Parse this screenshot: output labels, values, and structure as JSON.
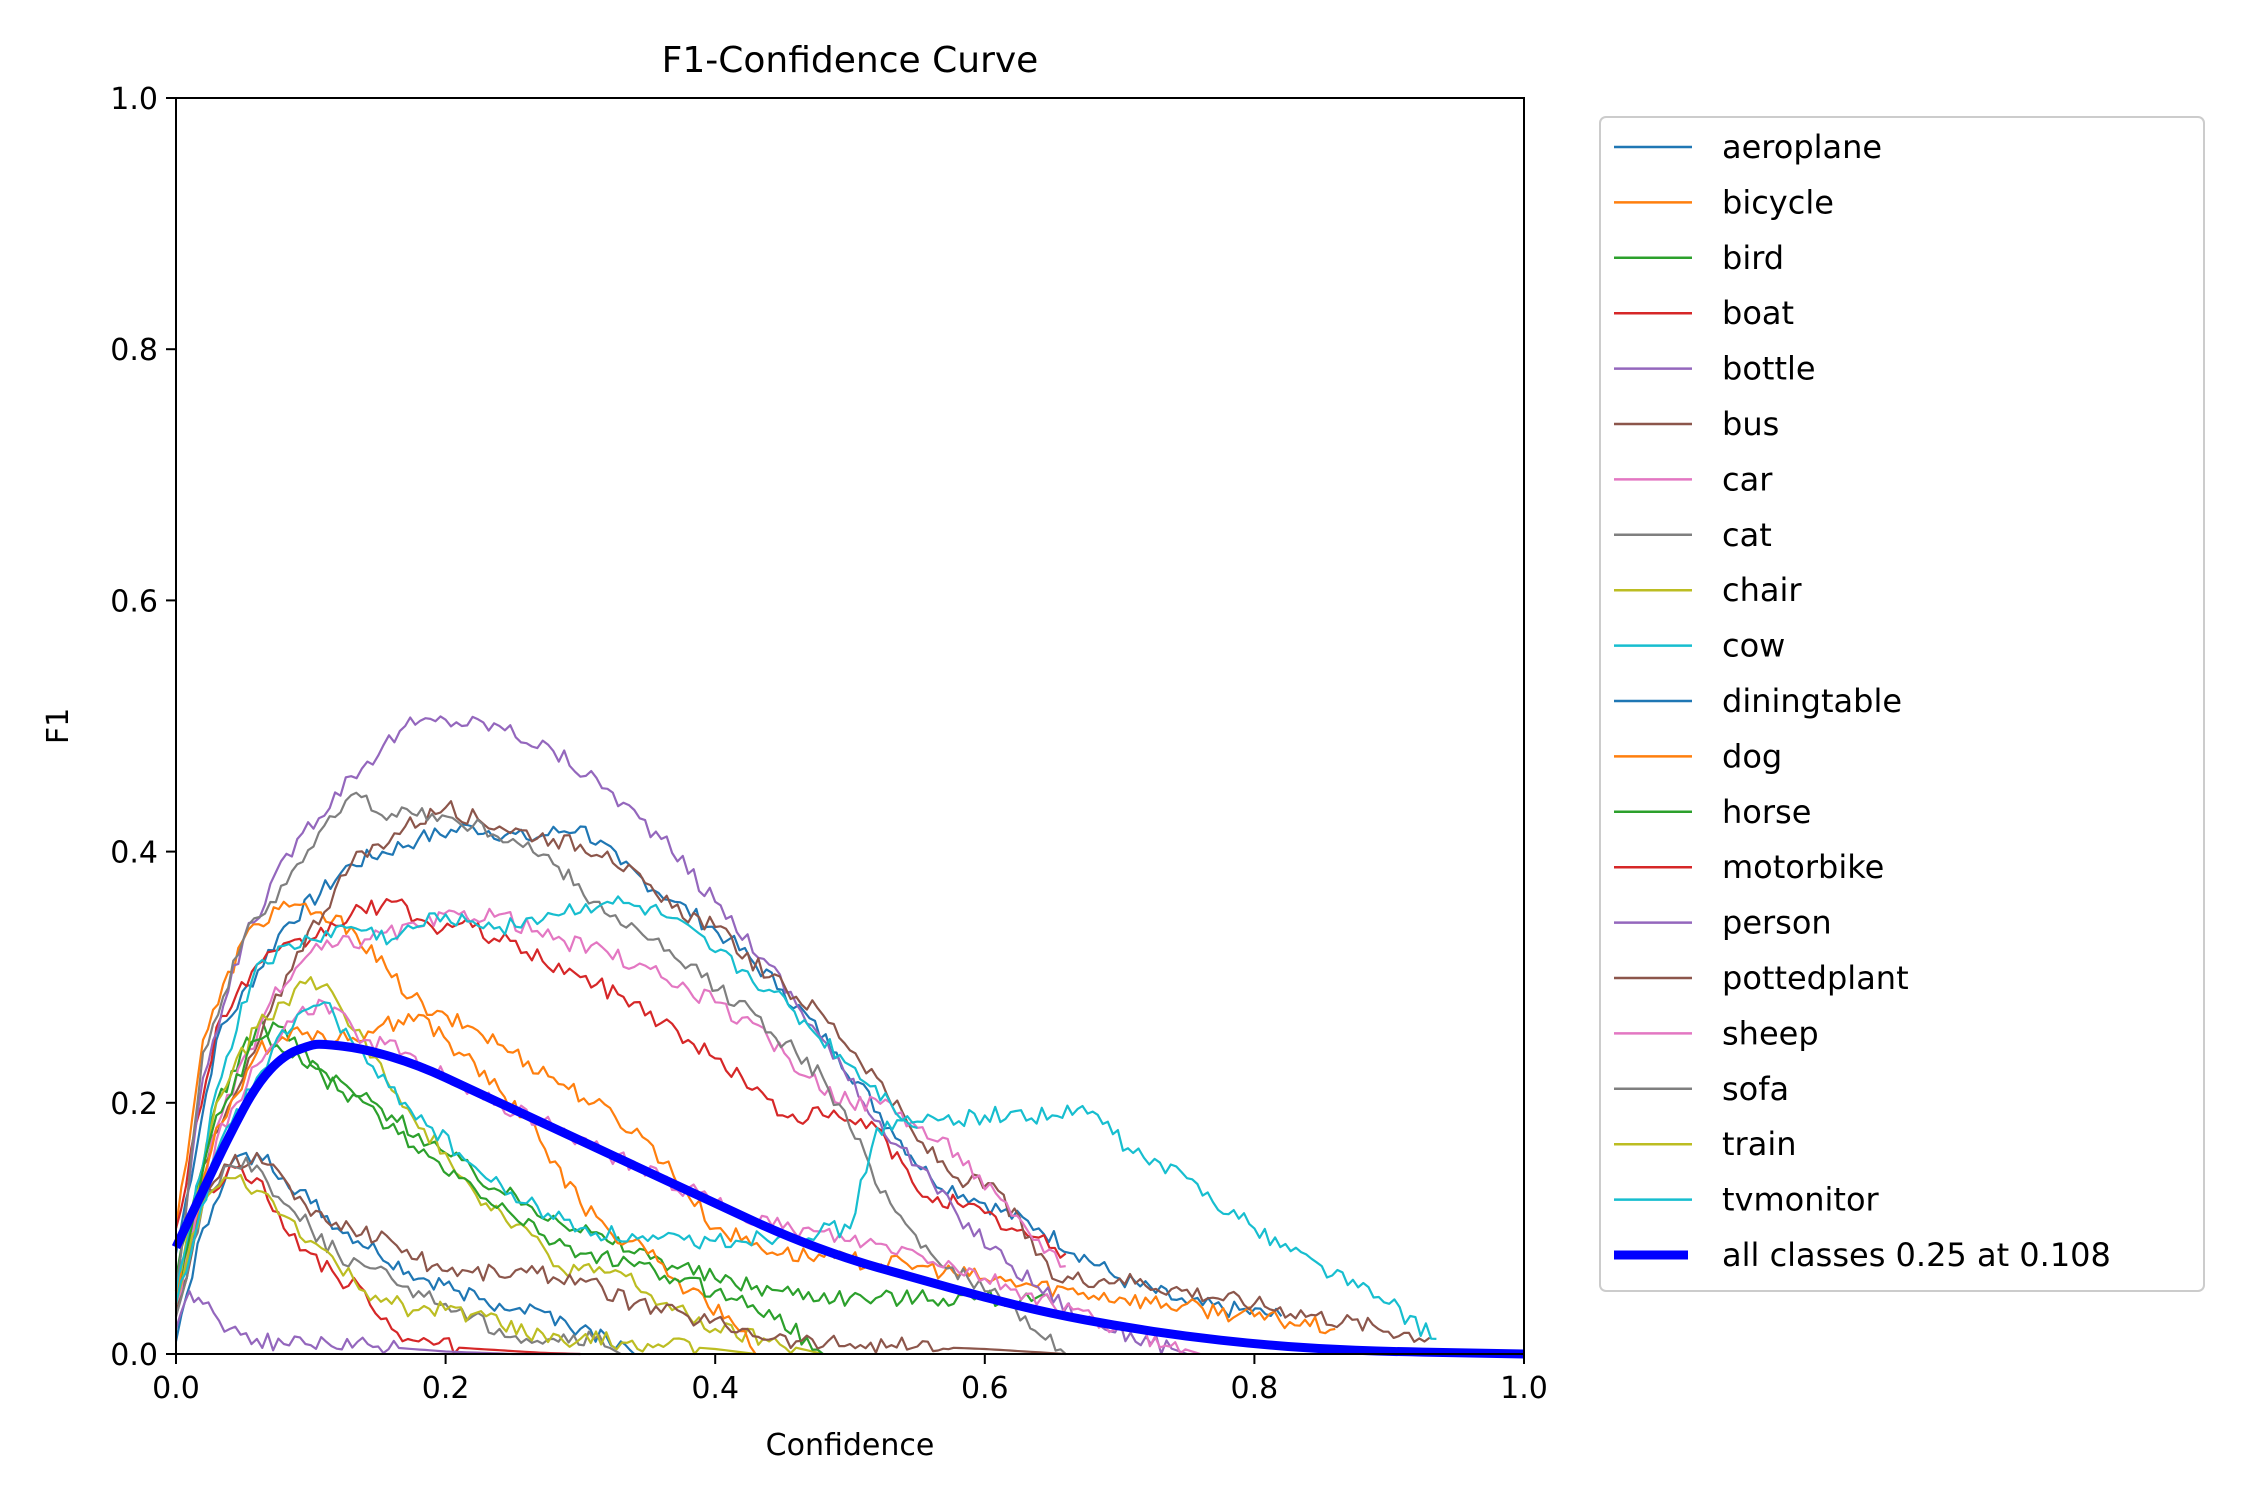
{
  "chart_data": {
    "type": "line",
    "title": "F1-Confidence Curve",
    "xlabel": "Confidence",
    "ylabel": "F1",
    "xlim": [
      0.0,
      1.0
    ],
    "ylim": [
      0.0,
      1.0
    ],
    "xticks": [
      "0.0",
      "0.2",
      "0.4",
      "0.6",
      "0.8",
      "1.0"
    ],
    "yticks": [
      "0.0",
      "0.2",
      "0.4",
      "0.6",
      "0.8",
      "1.0"
    ],
    "grid": false,
    "legend_position": "outside-right",
    "series": [
      {
        "name": "aeroplane",
        "color": "#1f77b4",
        "width": 1,
        "x": [
          0.0,
          0.03,
          0.08,
          0.13,
          0.18,
          0.22,
          0.26,
          0.3,
          0.33,
          0.37,
          0.41,
          0.45,
          0.49,
          0.53,
          0.56,
          0.6,
          0.64,
          0.7,
          0.75,
          0.82
        ],
        "y": [
          0.08,
          0.25,
          0.34,
          0.39,
          0.41,
          0.42,
          0.41,
          0.42,
          0.39,
          0.36,
          0.33,
          0.29,
          0.24,
          0.18,
          0.14,
          0.12,
          0.1,
          0.06,
          0.04,
          0.03
        ]
      },
      {
        "name": "bicycle",
        "color": "#ff7f0e",
        "width": 1,
        "x": [
          0.0,
          0.02,
          0.05,
          0.08,
          0.1,
          0.13,
          0.16,
          0.19,
          0.22,
          0.25,
          0.28,
          0.31,
          0.35,
          0.4,
          0.45,
          0.5,
          0.55,
          0.6,
          0.7,
          0.8,
          0.86
        ],
        "y": [
          0.1,
          0.25,
          0.33,
          0.36,
          0.35,
          0.34,
          0.3,
          0.27,
          0.26,
          0.24,
          0.22,
          0.2,
          0.17,
          0.1,
          0.08,
          0.075,
          0.07,
          0.06,
          0.045,
          0.03,
          0.02
        ]
      },
      {
        "name": "bird",
        "color": "#2ca02c",
        "width": 1,
        "x": [
          0.0,
          0.03,
          0.06,
          0.08,
          0.1,
          0.13,
          0.16,
          0.2,
          0.24,
          0.28,
          0.32,
          0.36,
          0.4,
          0.45,
          0.5,
          0.55,
          0.6,
          0.65
        ],
        "y": [
          0.06,
          0.2,
          0.26,
          0.26,
          0.23,
          0.21,
          0.19,
          0.16,
          0.13,
          0.11,
          0.09,
          0.075,
          0.06,
          0.05,
          0.045,
          0.045,
          0.045,
          0.04
        ]
      },
      {
        "name": "boat",
        "color": "#d62728",
        "width": 1,
        "x": [
          0.0,
          0.03,
          0.06,
          0.1,
          0.13,
          0.16,
          0.19,
          0.22,
          0.26,
          0.3,
          0.34,
          0.38,
          0.42,
          0.45,
          0.48,
          0.52,
          0.55,
          0.58,
          0.62,
          0.66
        ],
        "y": [
          0.1,
          0.26,
          0.31,
          0.33,
          0.35,
          0.36,
          0.34,
          0.34,
          0.32,
          0.3,
          0.28,
          0.25,
          0.22,
          0.19,
          0.19,
          0.18,
          0.13,
          0.12,
          0.1,
          0.08
        ]
      },
      {
        "name": "bottle",
        "color": "#9467bd",
        "width": 1,
        "x": [
          0.0,
          0.02,
          0.05,
          0.09,
          0.13,
          0.17,
          0.2,
          0.24,
          0.28,
          0.32,
          0.36,
          0.4,
          0.44,
          0.48,
          0.51,
          0.55,
          0.58,
          0.62,
          0.67,
          0.75
        ],
        "y": [
          0.05,
          0.22,
          0.33,
          0.41,
          0.46,
          0.5,
          0.505,
          0.5,
          0.48,
          0.45,
          0.41,
          0.36,
          0.31,
          0.25,
          0.2,
          0.15,
          0.11,
          0.07,
          0.03,
          0.0
        ]
      },
      {
        "name": "bus",
        "color": "#8c564b",
        "width": 1,
        "x": [
          0.0,
          0.02,
          0.05,
          0.09,
          0.13,
          0.17,
          0.2,
          0.24,
          0.28,
          0.32,
          0.36,
          0.4,
          0.44,
          0.48,
          0.52,
          0.55,
          0.58,
          0.61,
          0.65,
          0.7,
          0.8,
          0.93
        ],
        "y": [
          0.05,
          0.15,
          0.22,
          0.32,
          0.39,
          0.42,
          0.435,
          0.42,
          0.41,
          0.4,
          0.36,
          0.34,
          0.3,
          0.27,
          0.22,
          0.17,
          0.14,
          0.13,
          0.06,
          0.06,
          0.04,
          0.013
        ]
      },
      {
        "name": "car",
        "color": "#e377c2",
        "width": 1,
        "x": [
          0.0,
          0.03,
          0.07,
          0.1,
          0.14,
          0.18,
          0.21,
          0.24,
          0.28,
          0.32,
          0.36,
          0.4,
          0.44,
          0.47,
          0.5,
          0.53,
          0.55,
          0.58,
          0.62,
          0.66
        ],
        "y": [
          0.04,
          0.18,
          0.28,
          0.32,
          0.33,
          0.34,
          0.35,
          0.35,
          0.33,
          0.32,
          0.3,
          0.28,
          0.25,
          0.22,
          0.2,
          0.2,
          0.18,
          0.16,
          0.11,
          0.07
        ]
      },
      {
        "name": "cat",
        "color": "#7f7f7f",
        "width": 1,
        "x": [
          0.0,
          0.02,
          0.05,
          0.09,
          0.13,
          0.16,
          0.19,
          0.22,
          0.25,
          0.28,
          0.31,
          0.35,
          0.39,
          0.43,
          0.46,
          0.48,
          0.5,
          0.53,
          0.56,
          0.6,
          0.63,
          0.66
        ],
        "y": [
          0.05,
          0.24,
          0.33,
          0.39,
          0.445,
          0.43,
          0.43,
          0.42,
          0.41,
          0.39,
          0.36,
          0.33,
          0.3,
          0.27,
          0.24,
          0.22,
          0.18,
          0.12,
          0.08,
          0.05,
          0.03,
          0.0
        ]
      },
      {
        "name": "chair",
        "color": "#bcbd22",
        "width": 1,
        "x": [
          0.0,
          0.03,
          0.06,
          0.08,
          0.1,
          0.12,
          0.14,
          0.16,
          0.18,
          0.2,
          0.23,
          0.26,
          0.28,
          0.31,
          0.33,
          0.36,
          0.4,
          0.44,
          0.48
        ],
        "y": [
          0.05,
          0.2,
          0.26,
          0.28,
          0.3,
          0.28,
          0.25,
          0.21,
          0.18,
          0.16,
          0.12,
          0.1,
          0.07,
          0.065,
          0.065,
          0.04,
          0.02,
          0.01,
          0.0
        ]
      },
      {
        "name": "cow",
        "color": "#17becf",
        "width": 1,
        "x": [
          0.0,
          0.03,
          0.06,
          0.1,
          0.13,
          0.16,
          0.2,
          0.24,
          0.28,
          0.32,
          0.36,
          0.4,
          0.44,
          0.47,
          0.5,
          0.53,
          0.55
        ],
        "y": [
          0.05,
          0.21,
          0.31,
          0.33,
          0.34,
          0.33,
          0.35,
          0.34,
          0.35,
          0.36,
          0.35,
          0.32,
          0.29,
          0.26,
          0.23,
          0.2,
          0.18
        ]
      },
      {
        "name": "diningtable",
        "color": "#1f77b4",
        "width": 1,
        "x": [
          0.0,
          0.02,
          0.04,
          0.06,
          0.08,
          0.1,
          0.12,
          0.15,
          0.18,
          0.21,
          0.24,
          0.27,
          0.3,
          0.33,
          0.34
        ],
        "y": [
          0.01,
          0.1,
          0.15,
          0.16,
          0.14,
          0.12,
          0.1,
          0.08,
          0.06,
          0.05,
          0.04,
          0.035,
          0.02,
          0.01,
          0.0
        ]
      },
      {
        "name": "dog",
        "color": "#ff7f0e",
        "width": 1,
        "x": [
          0.0,
          0.03,
          0.06,
          0.09,
          0.12,
          0.15,
          0.18,
          0.21,
          0.24,
          0.27,
          0.3,
          0.32,
          0.35,
          0.38,
          0.41,
          0.43
        ],
        "y": [
          0.04,
          0.18,
          0.24,
          0.26,
          0.25,
          0.26,
          0.27,
          0.24,
          0.21,
          0.17,
          0.12,
          0.1,
          0.08,
          0.05,
          0.03,
          0.0
        ]
      },
      {
        "name": "horse",
        "color": "#2ca02c",
        "width": 1,
        "x": [
          0.0,
          0.03,
          0.06,
          0.09,
          0.12,
          0.15,
          0.18,
          0.21,
          0.25,
          0.3,
          0.34,
          0.37,
          0.4,
          0.44,
          0.48
        ],
        "y": [
          0.04,
          0.19,
          0.25,
          0.24,
          0.21,
          0.19,
          0.16,
          0.14,
          0.11,
          0.08,
          0.07,
          0.06,
          0.05,
          0.035,
          0.0
        ]
      },
      {
        "name": "motorbike",
        "color": "#d62728",
        "width": 1,
        "x": [
          0.0,
          0.02,
          0.04,
          0.06,
          0.08,
          0.1,
          0.12,
          0.14,
          0.16,
          0.18,
          0.21,
          0.24,
          0.27,
          0.3
        ],
        "y": [
          0.03,
          0.12,
          0.15,
          0.14,
          0.1,
          0.08,
          0.06,
          0.05,
          0.02,
          0.01,
          0.005,
          0.003,
          0.001,
          0.0
        ]
      },
      {
        "name": "person",
        "color": "#9467bd",
        "width": 1,
        "x": [
          0.0,
          0.01,
          0.02,
          0.04,
          0.06,
          0.08,
          0.1,
          0.15,
          0.2,
          0.25,
          0.3
        ],
        "y": [
          0.02,
          0.05,
          0.04,
          0.02,
          0.012,
          0.008,
          0.007,
          0.006,
          0.002,
          0.0,
          0.0
        ]
      },
      {
        "name": "pottedplant",
        "color": "#8c564b",
        "width": 1,
        "x": [
          0.0,
          0.02,
          0.04,
          0.06,
          0.08,
          0.1,
          0.13,
          0.16,
          0.19,
          0.22,
          0.26,
          0.3,
          0.34,
          0.38,
          0.42,
          0.46,
          0.5,
          0.55,
          0.6,
          0.66
        ],
        "y": [
          0.03,
          0.12,
          0.15,
          0.16,
          0.14,
          0.11,
          0.1,
          0.09,
          0.07,
          0.065,
          0.065,
          0.06,
          0.04,
          0.03,
          0.02,
          0.01,
          0.008,
          0.006,
          0.004,
          0.0
        ]
      },
      {
        "name": "sheep",
        "color": "#e377c2",
        "width": 1,
        "x": [
          0.0,
          0.03,
          0.06,
          0.09,
          0.11,
          0.14,
          0.17,
          0.2,
          0.24,
          0.28,
          0.32,
          0.36,
          0.4,
          0.45,
          0.5,
          0.55,
          0.6,
          0.65,
          0.7,
          0.76
        ],
        "y": [
          0.04,
          0.17,
          0.23,
          0.27,
          0.28,
          0.25,
          0.24,
          0.22,
          0.2,
          0.18,
          0.16,
          0.14,
          0.12,
          0.1,
          0.09,
          0.08,
          0.06,
          0.04,
          0.02,
          0.0
        ]
      },
      {
        "name": "sofa",
        "color": "#7f7f7f",
        "width": 1,
        "x": [
          0.0,
          0.02,
          0.04,
          0.06,
          0.08,
          0.1,
          0.12,
          0.14,
          0.16,
          0.18,
          0.2,
          0.22,
          0.24,
          0.26,
          0.28,
          0.31,
          0.33
        ],
        "y": [
          0.03,
          0.12,
          0.15,
          0.15,
          0.12,
          0.1,
          0.08,
          0.07,
          0.06,
          0.05,
          0.04,
          0.03,
          0.02,
          0.012,
          0.012,
          0.012,
          0.0
        ]
      },
      {
        "name": "train",
        "color": "#bcbd22",
        "width": 1,
        "x": [
          0.0,
          0.02,
          0.04,
          0.06,
          0.08,
          0.1,
          0.12,
          0.14,
          0.16,
          0.18,
          0.2,
          0.23,
          0.26,
          0.3,
          0.35,
          0.4,
          0.43
        ],
        "y": [
          0.04,
          0.12,
          0.14,
          0.13,
          0.11,
          0.09,
          0.07,
          0.05,
          0.04,
          0.035,
          0.035,
          0.03,
          0.015,
          0.012,
          0.008,
          0.004,
          0.0
        ]
      },
      {
        "name": "tvmonitor",
        "color": "#17becf",
        "width": 1,
        "x": [
          0.0,
          0.03,
          0.06,
          0.09,
          0.11,
          0.13,
          0.15,
          0.17,
          0.19,
          0.21,
          0.23,
          0.26,
          0.3,
          0.35,
          0.4,
          0.45,
          0.5,
          0.52,
          0.55,
          0.6,
          0.65,
          0.68,
          0.71,
          0.75,
          0.8,
          0.85,
          0.9,
          0.935
        ],
        "y": [
          0.04,
          0.16,
          0.22,
          0.27,
          0.28,
          0.25,
          0.22,
          0.2,
          0.18,
          0.16,
          0.14,
          0.12,
          0.1,
          0.09,
          0.09,
          0.095,
          0.1,
          0.18,
          0.185,
          0.19,
          0.19,
          0.193,
          0.16,
          0.14,
          0.1,
          0.07,
          0.04,
          0.012
        ]
      },
      {
        "name": "all classes 0.25 at 0.108",
        "color": "#0000ff",
        "width": 3,
        "x": [
          0.0,
          0.02,
          0.04,
          0.06,
          0.08,
          0.1,
          0.108,
          0.14,
          0.18,
          0.22,
          0.26,
          0.3,
          0.35,
          0.4,
          0.45,
          0.5,
          0.55,
          0.6,
          0.65,
          0.7,
          0.75,
          0.8,
          0.85,
          0.9,
          0.95,
          1.0
        ],
        "y": [
          0.085,
          0.13,
          0.175,
          0.215,
          0.238,
          0.246,
          0.247,
          0.243,
          0.23,
          0.21,
          0.19,
          0.17,
          0.145,
          0.12,
          0.095,
          0.075,
          0.06,
          0.045,
          0.032,
          0.022,
          0.014,
          0.008,
          0.004,
          0.002,
          0.001,
          0.0
        ]
      }
    ]
  }
}
